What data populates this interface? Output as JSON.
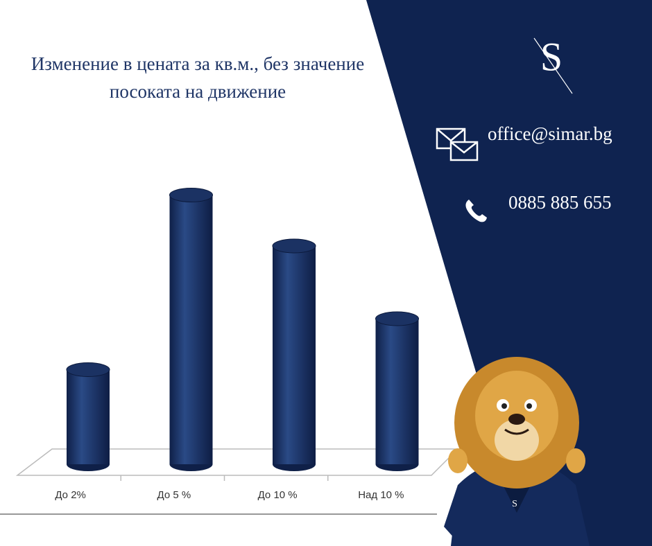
{
  "chart_data": {
    "type": "bar",
    "title": "Изменение в цената за кв.м., без значение посоката на движение",
    "categories": [
      "До 2%",
      "До 5 %",
      "До 10 %",
      "Над 10 %"
    ],
    "values": [
      13,
      37,
      30,
      20
    ],
    "color": "#1b3263",
    "ylim": [
      0,
      40
    ]
  },
  "contact": {
    "logo": "S",
    "email": "office@simar.bg",
    "phone": "0885 885 655"
  }
}
